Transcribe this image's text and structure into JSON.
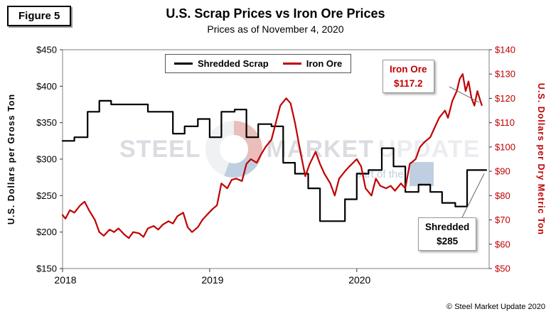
{
  "figure_label": "Figure 5",
  "title": "U.S. Scrap Prices vs Iron Ore Prices",
  "subtitle": "Prices as of November 4, 2020",
  "footer": "© Steel Market Update 2020",
  "watermark": {
    "steel": "STEEL",
    "market": "MARKET",
    "update": "UPDATE",
    "tagline": "part of the"
  },
  "legend": [
    {
      "label": "Shredded Scrap",
      "color": "#000000"
    },
    {
      "label": "Iron Ore",
      "color": "#C00000"
    }
  ],
  "annotations": [
    {
      "id": "iron-ore",
      "lines": [
        "Iron Ore",
        "$117.2"
      ],
      "color": "#C00000"
    },
    {
      "id": "shredded",
      "lines": [
        "Shredded",
        "$285"
      ],
      "color": "#000000"
    }
  ],
  "chart_data": {
    "type": "line",
    "title": "U.S. Scrap Prices vs Iron Ore Prices",
    "subtitle": "Prices as of November 4, 2020",
    "grid": false,
    "legend_position": "top-center",
    "x_axis": {
      "min": 2018,
      "max": 2020.9,
      "tick_values": [
        2018,
        2019,
        2020
      ],
      "labels": [
        "2018",
        "2019",
        "2020"
      ]
    },
    "left_axis": {
      "label": "U.S. Dollars per Gross Ton",
      "min": 150,
      "max": 450,
      "step": 50,
      "prefix": "$",
      "color": "#000000"
    },
    "right_axis": {
      "label": "U.S. Dollars per Dry Metric Ton",
      "min": 50,
      "max": 140,
      "step": 10,
      "prefix": "$",
      "color": "#C00000"
    },
    "last_values": {
      "shredded_scrap": 285,
      "iron_ore": 117.2
    },
    "series": [
      {
        "name": "Shredded Scrap",
        "axis": "left",
        "color": "#000000",
        "unit": "USD per gross ton",
        "line_style": "step",
        "x": [
          2018.0,
          2018.08,
          2018.17,
          2018.25,
          2018.33,
          2018.42,
          2018.5,
          2018.58,
          2018.67,
          2018.75,
          2018.83,
          2018.92,
          2019.0,
          2019.08,
          2019.17,
          2019.25,
          2019.33,
          2019.42,
          2019.5,
          2019.58,
          2019.67,
          2019.75,
          2019.83,
          2019.92,
          2020.0,
          2020.08,
          2020.17,
          2020.25,
          2020.33,
          2020.42,
          2020.5,
          2020.58,
          2020.67,
          2020.75,
          2020.83
        ],
        "y": [
          325,
          330,
          365,
          380,
          375,
          375,
          375,
          365,
          365,
          335,
          345,
          355,
          330,
          365,
          368,
          330,
          348,
          345,
          295,
          280,
          260,
          215,
          215,
          245,
          280,
          285,
          315,
          290,
          255,
          265,
          255,
          240,
          235,
          285,
          285
        ]
      },
      {
        "name": "Iron Ore",
        "axis": "right",
        "color": "#C00000",
        "unit": "USD per dry metric ton",
        "line_style": "linear",
        "x": [
          2018.0,
          2018.02,
          2018.05,
          2018.08,
          2018.12,
          2018.15,
          2018.18,
          2018.22,
          2018.25,
          2018.28,
          2018.32,
          2018.35,
          2018.38,
          2018.42,
          2018.45,
          2018.48,
          2018.52,
          2018.55,
          2018.58,
          2018.62,
          2018.65,
          2018.68,
          2018.72,
          2018.75,
          2018.78,
          2018.82,
          2018.85,
          2018.88,
          2018.92,
          2018.95,
          2018.98,
          2019.02,
          2019.05,
          2019.08,
          2019.12,
          2019.15,
          2019.18,
          2019.22,
          2019.25,
          2019.28,
          2019.32,
          2019.35,
          2019.38,
          2019.42,
          2019.45,
          2019.48,
          2019.52,
          2019.55,
          2019.58,
          2019.62,
          2019.65,
          2019.68,
          2019.72,
          2019.75,
          2019.78,
          2019.82,
          2019.85,
          2019.88,
          2019.92,
          2019.95,
          2020.0,
          2020.03,
          2020.06,
          2020.1,
          2020.13,
          2020.16,
          2020.2,
          2020.23,
          2020.26,
          2020.3,
          2020.33,
          2020.36,
          2020.4,
          2020.43,
          2020.46,
          2020.5,
          2020.53,
          2020.56,
          2020.6,
          2020.62,
          2020.65,
          2020.68,
          2020.7,
          2020.72,
          2020.74,
          2020.76,
          2020.78,
          2020.8,
          2020.82,
          2020.84,
          2020.85
        ],
        "y": [
          72,
          70.5,
          74,
          73,
          76,
          77.5,
          74,
          70,
          65,
          63.5,
          66,
          65,
          66.5,
          64,
          62.5,
          65,
          64.5,
          63,
          66.5,
          67.5,
          66,
          68,
          69.5,
          68.5,
          71.5,
          73,
          67,
          65,
          67,
          70,
          72,
          74.5,
          76,
          85,
          83,
          86.5,
          87,
          86,
          93,
          95,
          93.5,
          97,
          100,
          103,
          110,
          117,
          120,
          118,
          110,
          97,
          88,
          93,
          98,
          93,
          89,
          85,
          80,
          87,
          90,
          92,
          95,
          92,
          83,
          80,
          87,
          84,
          83,
          84,
          82,
          85,
          83,
          93,
          95,
          100,
          102,
          104,
          108,
          112,
          115,
          112,
          119,
          123,
          128,
          130,
          123,
          127,
          120,
          117,
          123,
          119,
          117.2
        ]
      }
    ]
  }
}
